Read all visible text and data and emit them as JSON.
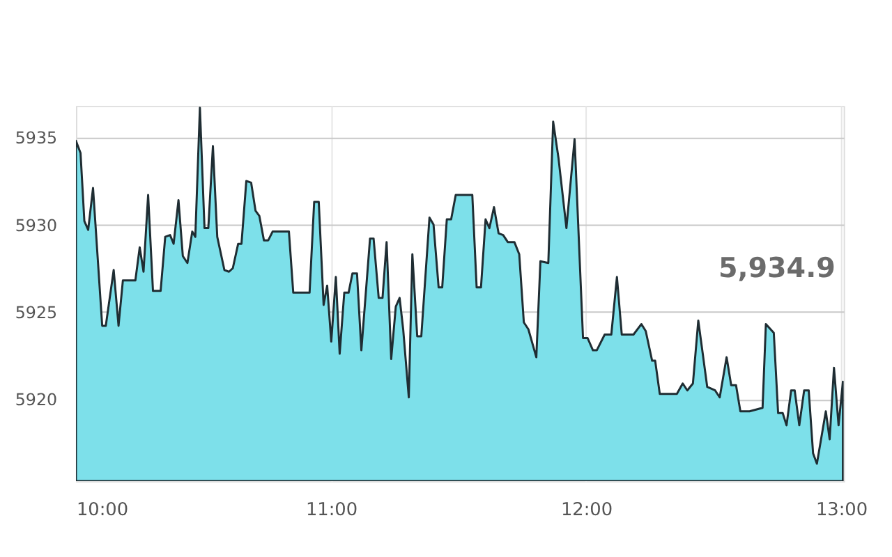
{
  "chart_data": {
    "type": "area",
    "x": [
      10.0,
      10.018,
      10.033,
      10.048,
      10.067,
      10.103,
      10.117,
      10.148,
      10.167,
      10.184,
      10.233,
      10.25,
      10.265,
      10.283,
      10.302,
      10.332,
      10.35,
      10.369,
      10.383,
      10.402,
      10.419,
      10.437,
      10.456,
      10.468,
      10.486,
      10.504,
      10.519,
      10.537,
      10.554,
      10.582,
      10.6,
      10.615,
      10.636,
      10.649,
      10.668,
      10.687,
      10.704,
      10.719,
      10.737,
      10.754,
      10.771,
      10.835,
      10.852,
      10.916,
      10.934,
      10.952,
      10.971,
      10.985,
      11.001,
      11.019,
      11.034,
      11.052,
      11.069,
      11.084,
      11.102,
      11.119,
      11.153,
      11.167,
      11.187,
      11.202,
      11.218,
      11.236,
      11.254,
      11.269,
      11.283,
      11.305,
      11.319,
      11.338,
      11.354,
      11.386,
      11.402,
      11.422,
      11.436,
      11.454,
      11.471,
      11.489,
      11.554,
      11.571,
      11.588,
      11.606,
      11.621,
      11.639,
      11.657,
      11.675,
      11.693,
      11.719,
      11.738,
      11.756,
      11.774,
      11.805,
      11.821,
      11.852,
      11.871,
      11.892,
      11.923,
      11.955,
      11.988,
      12.006,
      12.027,
      12.042,
      12.073,
      12.099,
      12.121,
      12.14,
      12.186,
      12.217,
      12.234,
      12.259,
      12.271,
      12.289,
      12.356,
      12.379,
      12.397,
      12.419,
      12.44,
      12.475,
      12.506,
      12.524,
      12.551,
      12.569,
      12.588,
      12.605,
      12.641,
      12.692,
      12.705,
      12.736,
      12.753,
      12.771,
      12.786,
      12.804,
      12.818,
      12.836,
      12.855,
      12.873,
      12.89,
      12.905,
      12.94,
      12.955,
      12.972,
      12.99,
      13.007
    ],
    "series": [
      {
        "color": "#7de0ea",
        "values": [
          5934.8,
          5934.1,
          5930.2,
          5929.7,
          5932.1,
          5924.2,
          5924.2,
          5927.4,
          5924.2,
          5926.8,
          5926.8,
          5928.7,
          5927.3,
          5931.7,
          5926.2,
          5926.2,
          5929.3,
          5929.4,
          5928.9,
          5931.4,
          5928.2,
          5927.8,
          5929.6,
          5929.3,
          5936.7,
          5929.8,
          5929.8,
          5934.5,
          5929.3,
          5927.4,
          5927.3,
          5927.5,
          5928.9,
          5928.9,
          5932.5,
          5932.4,
          5930.8,
          5930.5,
          5929.1,
          5929.1,
          5929.6,
          5929.6,
          5926.1,
          5926.1,
          5931.3,
          5931.3,
          5925.4,
          5926.5,
          5923.3,
          5927.0,
          5922.6,
          5926.1,
          5926.1,
          5927.2,
          5927.2,
          5922.8,
          5929.2,
          5929.2,
          5925.8,
          5925.8,
          5929.0,
          5922.3,
          5925.3,
          5925.8,
          5924.0,
          5920.1,
          5928.3,
          5923.6,
          5923.6,
          5930.4,
          5930.0,
          5926.4,
          5926.4,
          5930.3,
          5930.3,
          5931.7,
          5931.7,
          5926.4,
          5926.4,
          5930.3,
          5929.8,
          5931.0,
          5929.5,
          5929.4,
          5929.0,
          5929.0,
          5928.3,
          5924.4,
          5924.0,
          5922.4,
          5927.9,
          5927.8,
          5935.9,
          5933.8,
          5929.8,
          5934.9,
          5923.5,
          5923.5,
          5922.8,
          5922.8,
          5923.7,
          5923.7,
          5927.0,
          5923.7,
          5923.7,
          5924.3,
          5923.9,
          5922.2,
          5922.2,
          5920.3,
          5920.3,
          5920.9,
          5920.5,
          5920.9,
          5924.5,
          5920.7,
          5920.5,
          5920.1,
          5922.4,
          5920.8,
          5920.8,
          5919.3,
          5919.3,
          5919.5,
          5924.3,
          5923.8,
          5919.2,
          5919.2,
          5918.5,
          5920.5,
          5920.5,
          5918.5,
          5920.5,
          5920.5,
          5916.9,
          5916.3,
          5919.3,
          5917.7,
          5921.8,
          5918.5,
          5921.0
        ]
      }
    ],
    "xlim": [
      10,
      13.01
    ],
    "xticks": [
      {
        "value": 10,
        "label": "10:00"
      },
      {
        "value": 11,
        "label": "11:00"
      },
      {
        "value": 12,
        "label": "12:00"
      },
      {
        "value": 13,
        "label": "13:00"
      }
    ],
    "ylim": [
      5915.3,
      5936.8
    ],
    "yticks": [
      5920,
      5925,
      5930,
      5935
    ],
    "grid": true,
    "annotations": [
      "5,934.9"
    ]
  }
}
